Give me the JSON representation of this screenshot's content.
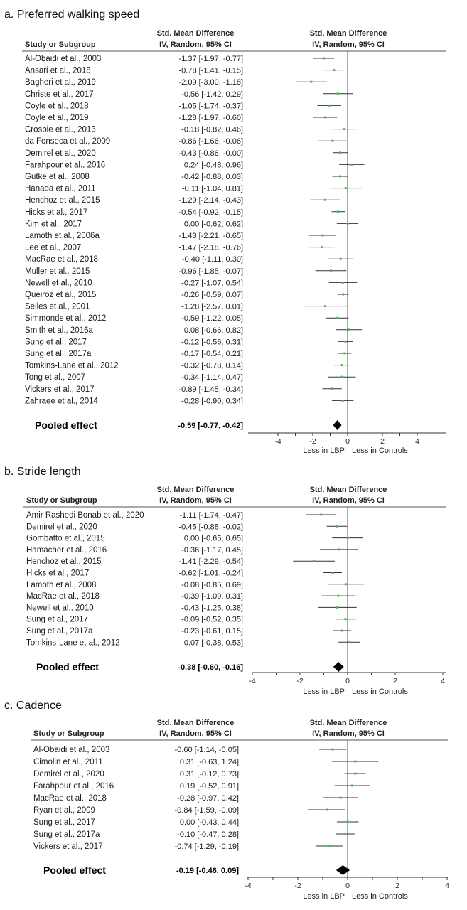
{
  "headers": {
    "study": "Study or Subgroup",
    "smd": "Std. Mean Difference",
    "method": "IV, Random, 95% CI"
  },
  "chart_data": [
    {
      "type": "forest",
      "title": "a. Preferred walking speed",
      "xlim": [
        -6,
        6
      ],
      "ticks": [
        -4,
        -2,
        0,
        2,
        4
      ],
      "xlabel_left": "Less in LBP",
      "xlabel_right": "Less in Controls",
      "studies": [
        {
          "name": "Al-Obaidi et al., 2003",
          "est": -1.37,
          "lo": -1.97,
          "hi": -0.77,
          "ci": "-1.37 [-1.97, -0.77]"
        },
        {
          "name": "Ansari et al., 2018",
          "est": -0.78,
          "lo": -1.41,
          "hi": -0.15,
          "ci": "-0.78 [-1.41, -0.15]"
        },
        {
          "name": "Bagheri et al., 2019",
          "est": -2.09,
          "lo": -3.0,
          "hi": -1.18,
          "ci": "-2.09 [-3.00, -1.18]"
        },
        {
          "name": "Christe et al., 2017",
          "est": -0.56,
          "lo": -1.42,
          "hi": 0.29,
          "ci": "-0.56 [-1.42, 0.29]"
        },
        {
          "name": "Coyle et al., 2018",
          "est": -1.05,
          "lo": -1.74,
          "hi": -0.37,
          "ci": "-1.05 [-1.74, -0.37]"
        },
        {
          "name": "Coyle et al., 2019",
          "est": -1.28,
          "lo": -1.97,
          "hi": -0.6,
          "ci": "-1.28 [-1.97, -0.60]"
        },
        {
          "name": "Crosbie et al., 2013",
          "est": -0.18,
          "lo": -0.82,
          "hi": 0.46,
          "ci": "-0.18 [-0.82, 0.46]"
        },
        {
          "name": "da Fonseca et al., 2009",
          "est": -0.86,
          "lo": -1.66,
          "hi": -0.06,
          "ci": "-0.86 [-1.66, -0.06]"
        },
        {
          "name": "Demirel et al., 2020",
          "est": -0.43,
          "lo": -0.86,
          "hi": -0.0,
          "ci": "-0.43 [-0.86, -0.00]"
        },
        {
          "name": "Farahpour et al., 2016",
          "est": 0.24,
          "lo": -0.48,
          "hi": 0.96,
          "ci": "0.24 [-0.48, 0.96]"
        },
        {
          "name": "Gutke et al., 2008",
          "est": -0.42,
          "lo": -0.88,
          "hi": 0.03,
          "ci": "-0.42 [-0.88, 0.03]"
        },
        {
          "name": "Hanada et al., 2011",
          "est": -0.11,
          "lo": -1.04,
          "hi": 0.81,
          "ci": "-0.11 [-1.04, 0.81]"
        },
        {
          "name": "Henchoz et al., 2015",
          "est": -1.29,
          "lo": -2.14,
          "hi": -0.43,
          "ci": "-1.29 [-2.14, -0.43]"
        },
        {
          "name": "Hicks et al., 2017",
          "est": -0.54,
          "lo": -0.92,
          "hi": -0.15,
          "ci": "-0.54 [-0.92, -0.15]"
        },
        {
          "name": "Kim et al., 2017",
          "est": 0.0,
          "lo": -0.62,
          "hi": 0.62,
          "ci": "0.00 [-0.62, 0.62]"
        },
        {
          "name": "Lamoth et al., 2006a",
          "est": -1.43,
          "lo": -2.21,
          "hi": -0.65,
          "ci": "-1.43 [-2.21, -0.65]"
        },
        {
          "name": "Lee et al., 2007",
          "est": -1.47,
          "lo": -2.18,
          "hi": -0.76,
          "ci": "-1.47 [-2.18, -0.76]"
        },
        {
          "name": "MacRae et al., 2018",
          "est": -0.4,
          "lo": -1.11,
          "hi": 0.3,
          "ci": "-0.40 [-1.11, 0.30]"
        },
        {
          "name": "Muller et al., 2015",
          "est": -0.96,
          "lo": -1.85,
          "hi": -0.07,
          "ci": "-0.96 [-1.85, -0.07]"
        },
        {
          "name": "Newell et al., 2010",
          "est": -0.27,
          "lo": -1.07,
          "hi": 0.54,
          "ci": "-0.27 [-1.07, 0.54]"
        },
        {
          "name": "Queiroz et al., 2015",
          "est": -0.26,
          "lo": -0.59,
          "hi": 0.07,
          "ci": "-0.26 [-0.59, 0.07]"
        },
        {
          "name": "Selles et al., 2001",
          "est": -1.28,
          "lo": -2.57,
          "hi": 0.01,
          "ci": "-1.28 [-2.57, 0.01]"
        },
        {
          "name": "Simmonds et al., 2012",
          "est": -0.59,
          "lo": -1.22,
          "hi": 0.05,
          "ci": "-0.59 [-1.22, 0.05]"
        },
        {
          "name": "Smith et al., 2016a",
          "est": 0.08,
          "lo": -0.66,
          "hi": 0.82,
          "ci": "0.08 [-0.66, 0.82]"
        },
        {
          "name": "Sung et al., 2017",
          "est": -0.12,
          "lo": -0.56,
          "hi": 0.31,
          "ci": "-0.12 [-0.56, 0.31]"
        },
        {
          "name": "Sung et al., 2017a",
          "est": -0.17,
          "lo": -0.54,
          "hi": 0.21,
          "ci": "-0.17 [-0.54, 0.21]"
        },
        {
          "name": "Tomkins-Lane et al., 2012",
          "est": -0.32,
          "lo": -0.78,
          "hi": 0.14,
          "ci": "-0.32 [-0.78, 0.14]"
        },
        {
          "name": "Tong et al., 2007",
          "est": -0.34,
          "lo": -1.14,
          "hi": 0.47,
          "ci": "-0.34 [-1.14, 0.47]"
        },
        {
          "name": "Vickers et al., 2017",
          "est": -0.89,
          "lo": -1.45,
          "hi": -0.34,
          "ci": "-0.89 [-1.45, -0.34]"
        },
        {
          "name": "Zahraee et al., 2014",
          "est": -0.28,
          "lo": -0.9,
          "hi": 0.34,
          "ci": "-0.28 [-0.90, 0.34]"
        }
      ],
      "pooled": {
        "label": "Pooled effect",
        "est": -0.59,
        "lo": -0.77,
        "hi": -0.42,
        "ci": "-0.59 [-0.77, -0.42]"
      }
    },
    {
      "type": "forest",
      "title": "b. Stride length",
      "xlim": [
        -4,
        4
      ],
      "ticks": [
        -4,
        -2,
        0,
        2,
        4
      ],
      "xlabel_left": "Less in LBP",
      "xlabel_right": "Less in Controls",
      "studies": [
        {
          "name": "Amir Rashedi Bonab et al., 2020",
          "est": -1.11,
          "lo": -1.74,
          "hi": -0.47,
          "ci": "-1.11 [-1.74, -0.47]"
        },
        {
          "name": "Demirel et al., 2020",
          "est": -0.45,
          "lo": -0.88,
          "hi": -0.02,
          "ci": "-0.45 [-0.88, -0.02]"
        },
        {
          "name": "Gombatto et al., 2015",
          "est": 0.0,
          "lo": -0.65,
          "hi": 0.65,
          "ci": "0.00 [-0.65, 0.65]"
        },
        {
          "name": "Hamacher et al., 2016",
          "est": -0.36,
          "lo": -1.17,
          "hi": 0.45,
          "ci": "-0.36 [-1.17, 0.45]"
        },
        {
          "name": "Henchoz et al., 2015",
          "est": -1.41,
          "lo": -2.29,
          "hi": -0.54,
          "ci": "-1.41 [-2.29, -0.54]"
        },
        {
          "name": "Hicks et al., 2017",
          "est": -0.62,
          "lo": -1.01,
          "hi": -0.24,
          "ci": "-0.62 [-1.01, -0.24]"
        },
        {
          "name": "Lamoth et al., 2008",
          "est": -0.08,
          "lo": -0.85,
          "hi": 0.69,
          "ci": "-0.08 [-0.85, 0.69]"
        },
        {
          "name": "MacRae et al., 2018",
          "est": -0.39,
          "lo": -1.09,
          "hi": 0.31,
          "ci": "-0.39 [-1.09, 0.31]"
        },
        {
          "name": "Newell et al., 2010",
          "est": -0.43,
          "lo": -1.25,
          "hi": 0.38,
          "ci": "-0.43 [-1.25, 0.38]"
        },
        {
          "name": "Sung et al., 2017",
          "est": -0.09,
          "lo": -0.52,
          "hi": 0.35,
          "ci": "-0.09 [-0.52, 0.35]"
        },
        {
          "name": "Sung et al., 2017a",
          "est": -0.23,
          "lo": -0.61,
          "hi": 0.15,
          "ci": "-0.23 [-0.61, 0.15]"
        },
        {
          "name": "Tomkins-Lane et al., 2012",
          "est": 0.07,
          "lo": -0.38,
          "hi": 0.53,
          "ci": "0.07 [-0.38, 0.53]"
        }
      ],
      "pooled": {
        "label": "Pooled effect",
        "est": -0.38,
        "lo": -0.6,
        "hi": -0.16,
        "ci": "-0.38 [-0.60, -0.16]"
      }
    },
    {
      "type": "forest",
      "title": "c. Cadence",
      "xlim": [
        -4,
        4
      ],
      "ticks": [
        -4,
        -2,
        0,
        2,
        4
      ],
      "xlabel_left": "Less in LBP",
      "xlabel_right": "Less in Controls",
      "studies": [
        {
          "name": "Al-Obaidi et al., 2003",
          "est": -0.6,
          "lo": -1.14,
          "hi": -0.05,
          "ci": "-0.60 [-1.14, -0.05]"
        },
        {
          "name": "Cimolin et al., 2011",
          "est": 0.31,
          "lo": -0.63,
          "hi": 1.24,
          "ci": "0.31 [-0.63, 1.24]"
        },
        {
          "name": "Demirel et al., 2020",
          "est": 0.31,
          "lo": -0.12,
          "hi": 0.73,
          "ci": "0.31 [-0.12, 0.73]"
        },
        {
          "name": "Farahpour et al., 2016",
          "est": 0.19,
          "lo": -0.52,
          "hi": 0.91,
          "ci": "0.19 [-0.52, 0.91]"
        },
        {
          "name": "MacRae et al., 2018",
          "est": -0.28,
          "lo": -0.97,
          "hi": 0.42,
          "ci": "-0.28 [-0.97, 0.42]"
        },
        {
          "name": "Ryan et al., 2009",
          "est": -0.84,
          "lo": -1.59,
          "hi": -0.09,
          "ci": "-0.84 [-1.59, -0.09]"
        },
        {
          "name": "Sung et al., 2017",
          "est": 0.0,
          "lo": -0.43,
          "hi": 0.44,
          "ci": "0.00 [-0.43, 0.44]"
        },
        {
          "name": "Sung et al., 2017a",
          "est": -0.1,
          "lo": -0.47,
          "hi": 0.28,
          "ci": "-0.10 [-0.47, 0.28]"
        },
        {
          "name": "Vickers et al., 2017",
          "est": -0.74,
          "lo": -1.29,
          "hi": -0.19,
          "ci": "-0.74 [-1.29, -0.19]"
        }
      ],
      "pooled": {
        "label": "Pooled effect",
        "est": -0.19,
        "lo": -0.46,
        "hi": 0.09,
        "ci": "-0.19 [-0.46, 0.09]"
      }
    }
  ],
  "colors": {
    "point": "#44c24a",
    "line": "#333333",
    "diamond": "#000000"
  }
}
